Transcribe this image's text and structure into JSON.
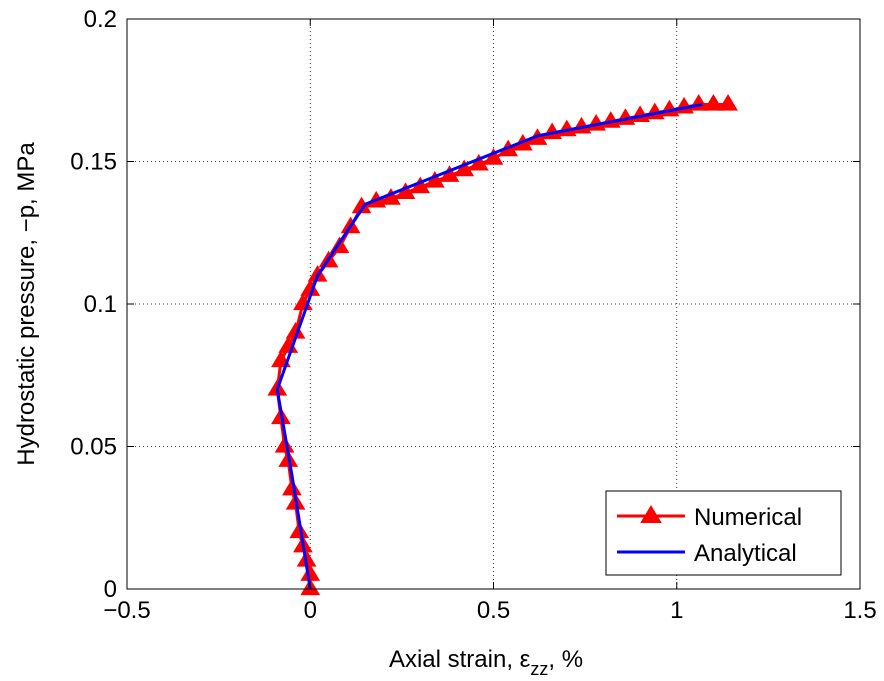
{
  "chart_data": {
    "type": "line",
    "title": "",
    "xlabel_main": "Axial strain, ε",
    "xlabel_sub": "zz",
    "xlabel_tail": ", %",
    "ylabel": "Hydrostatic pressure, −p, MPa",
    "xlim": [
      -0.5,
      1.5
    ],
    "ylim": [
      0,
      0.2
    ],
    "xticks": [
      -0.5,
      0,
      0.5,
      1,
      1.5
    ],
    "xtick_labels": [
      "−0.5",
      "0",
      "0.5",
      "1",
      "1.5"
    ],
    "yticks": [
      0,
      0.05,
      0.1,
      0.15,
      0.2
    ],
    "ytick_labels": [
      "0",
      "0.05",
      "0.1",
      "0.15",
      "0.2"
    ],
    "grid": true,
    "legend_position": "bottom-right",
    "series": [
      {
        "name": "Numerical",
        "color": "#ff0000",
        "marker": "triangle",
        "x": [
          0.0,
          0.0,
          -0.01,
          -0.02,
          -0.03,
          -0.04,
          -0.05,
          -0.06,
          -0.07,
          -0.08,
          -0.09,
          -0.08,
          -0.06,
          -0.04,
          -0.02,
          0.0,
          0.02,
          0.05,
          0.08,
          0.11,
          0.14,
          0.18,
          0.22,
          0.26,
          0.3,
          0.34,
          0.38,
          0.42,
          0.46,
          0.5,
          0.54,
          0.58,
          0.62,
          0.66,
          0.7,
          0.74,
          0.78,
          0.82,
          0.86,
          0.9,
          0.94,
          0.98,
          1.02,
          1.06,
          1.1,
          1.14
        ],
        "y": [
          0.0,
          0.005,
          0.01,
          0.015,
          0.02,
          0.03,
          0.035,
          0.045,
          0.05,
          0.06,
          0.07,
          0.08,
          0.085,
          0.09,
          0.1,
          0.105,
          0.11,
          0.115,
          0.12,
          0.127,
          0.134,
          0.136,
          0.137,
          0.139,
          0.141,
          0.143,
          0.145,
          0.147,
          0.149,
          0.151,
          0.154,
          0.156,
          0.158,
          0.16,
          0.161,
          0.162,
          0.163,
          0.164,
          0.165,
          0.166,
          0.167,
          0.168,
          0.169,
          0.17,
          0.17,
          0.17
        ]
      },
      {
        "name": "Analytical",
        "color": "#0000ff",
        "marker": "none",
        "x": [
          0.0,
          -0.05,
          -0.09,
          0.02,
          0.15,
          0.62,
          1.07
        ],
        "y": [
          0.0,
          0.04,
          0.07,
          0.11,
          0.135,
          0.159,
          0.17
        ]
      }
    ]
  }
}
